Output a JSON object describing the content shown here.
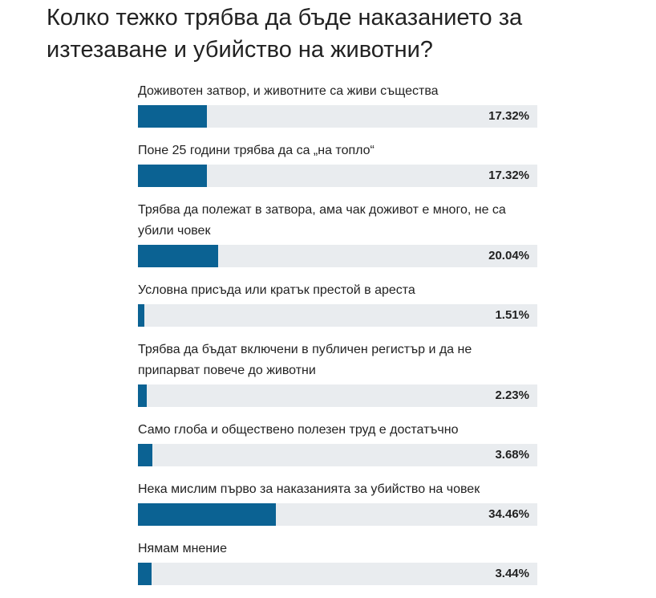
{
  "chart_data": {
    "type": "bar",
    "title": "Колко тежко трябва да бъде наказанието за изтезаване и убийство на животни?",
    "categories": [
      "Доживотен затвор, и животните са живи същества",
      "Поне 25 години трябва да са „на топло“",
      "Трябва да полежат в затвора, ама чак доживот е много, не са убили човек",
      "Условна присъда или кратък престой в ареста",
      "Трябва да бъдат включени в публичен регистър и да не припарват повече до животни",
      "Само глоба и обществено полезен труд е достатъчно",
      "Нека мислим първо за наказанията за убийство на човек",
      "Нямам мнение"
    ],
    "values": [
      17.32,
      17.32,
      20.04,
      1.51,
      2.23,
      3.68,
      34.46,
      3.44
    ],
    "value_labels": [
      "17.32%",
      "17.32%",
      "20.04%",
      "1.51%",
      "2.23%",
      "3.68%",
      "34.46%",
      "3.44%"
    ],
    "xlim": [
      0,
      100
    ],
    "color": "#0b6293"
  }
}
